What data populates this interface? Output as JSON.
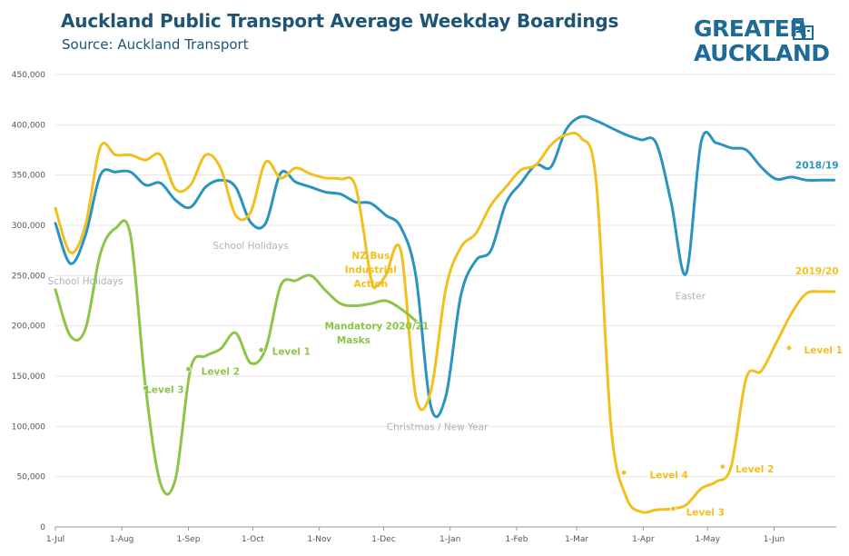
{
  "header": {
    "title": "Auckland Public Transport Average Weekday Boardings",
    "subtitle": "Source: Auckland Transport"
  },
  "logo": {
    "line1": "GREATER",
    "line2": "AUCKLAND",
    "icon": "buildings-icon",
    "color": "#1d6b97"
  },
  "chart_data": {
    "type": "line",
    "title": "Auckland Public Transport Average Weekday Boardings",
    "subtitle": "Source: Auckland Transport",
    "xlabel": "",
    "ylabel": "",
    "ylim": [
      0,
      450000
    ],
    "yticks": [
      0,
      50000,
      100000,
      150000,
      200000,
      250000,
      300000,
      350000,
      400000,
      450000
    ],
    "ytick_labels": [
      "0",
      "50,000",
      "100,000",
      "150,000",
      "200,000",
      "250,000",
      "300,000",
      "350,000",
      "400,000",
      "450,000"
    ],
    "xlim": [
      "1-Jul",
      "30-Jun"
    ],
    "xtick_labels": [
      "1-Jul",
      "1-Aug",
      "1-Sep",
      "1-Oct",
      "1-Nov",
      "1-Dec",
      "1-Jan",
      "1-Feb",
      "1-Mar",
      "1-Apr",
      "1-May",
      "1-Jun"
    ],
    "xtick_days": [
      0,
      31,
      62,
      92,
      123,
      153,
      184,
      215,
      243,
      274,
      304,
      335
    ],
    "grid": "horizontal",
    "series": [
      {
        "name": "2018/19",
        "color": "#2b93c0",
        "x": [
          0,
          7,
          14,
          21,
          28,
          35,
          42,
          49,
          56,
          63,
          70,
          77,
          84,
          91,
          98,
          105,
          112,
          119,
          126,
          133,
          140,
          147,
          154,
          161,
          168,
          175,
          182,
          189,
          196,
          203,
          210,
          217,
          224,
          231,
          238,
          245,
          252,
          259,
          266,
          273,
          280,
          287,
          294,
          301,
          308,
          315,
          322,
          329,
          336,
          343,
          350,
          357,
          363
        ],
        "y": [
          302000,
          262000,
          290000,
          350000,
          353000,
          353000,
          340000,
          342000,
          325000,
          318000,
          338000,
          345000,
          338000,
          303000,
          302000,
          352000,
          343000,
          338000,
          333000,
          331000,
          323000,
          322000,
          310000,
          298000,
          250000,
          120000,
          130000,
          230000,
          265000,
          275000,
          322000,
          342000,
          360000,
          358000,
          395000,
          408000,
          404000,
          397000,
          390000,
          385000,
          382000,
          323000,
          252000,
          383000,
          382000,
          377000,
          375000,
          358000,
          346000,
          348000,
          345000,
          345000,
          345000
        ]
      },
      {
        "name": "2019/20",
        "color": "#f2c01e",
        "x": [
          0,
          7,
          14,
          21,
          28,
          35,
          42,
          49,
          56,
          63,
          70,
          77,
          84,
          91,
          98,
          105,
          112,
          119,
          126,
          133,
          140,
          147,
          150,
          154,
          161,
          168,
          175,
          182,
          189,
          196,
          203,
          210,
          217,
          224,
          231,
          238,
          245,
          252,
          259,
          266,
          273,
          280,
          287,
          294,
          301,
          308,
          315,
          322,
          329,
          336,
          343,
          350,
          357,
          363
        ],
        "y": [
          317000,
          273000,
          300000,
          378000,
          370000,
          370000,
          365000,
          370000,
          336000,
          340000,
          370000,
          357000,
          310000,
          313000,
          363000,
          347000,
          357000,
          351000,
          347000,
          346000,
          338000,
          248000,
          240000,
          250000,
          275000,
          130000,
          135000,
          237000,
          278000,
          292000,
          320000,
          338000,
          355000,
          360000,
          380000,
          390000,
          387000,
          345000,
          100000,
          30000,
          15000,
          17000,
          18000,
          22000,
          38000,
          45000,
          60000,
          148000,
          155000,
          183000,
          212000,
          232000,
          234000,
          234000
        ]
      },
      {
        "name": "2020/21",
        "color": "#8dc549",
        "x": [
          0,
          7,
          14,
          21,
          28,
          35,
          42,
          49,
          56,
          63,
          70,
          77,
          84,
          91,
          98,
          105,
          112,
          119,
          126,
          133,
          140,
          147,
          154,
          161,
          168
        ],
        "y": [
          236000,
          190000,
          197000,
          272000,
          297000,
          290000,
          140000,
          43000,
          48000,
          157000,
          170000,
          177000,
          193000,
          163000,
          177000,
          240000,
          245000,
          250000,
          235000,
          222000,
          220000,
          222000,
          225000,
          217000,
          205000
        ]
      }
    ],
    "annotations": [
      {
        "text": "School Holidays",
        "color": "#a9b4bd",
        "x": 14,
        "y": 245000
      },
      {
        "text": "School Holidays",
        "color": "#a9b4bd",
        "x": 91,
        "y": 280000
      },
      {
        "text": "NZ Bus",
        "color": "#f2c01e",
        "x": 147,
        "y": 270000
      },
      {
        "text": "Industrial",
        "color": "#f2c01e",
        "x": 147,
        "y": 256000
      },
      {
        "text": "Action",
        "color": "#f2c01e",
        "x": 147,
        "y": 242000
      },
      {
        "text": "Mandatory",
        "color": "#8dc549",
        "x": 139,
        "y": 200000
      },
      {
        "text": "Masks",
        "color": "#8dc549",
        "x": 139,
        "y": 186000
      },
      {
        "text": "2020/21",
        "color": "#8dc549",
        "x": 164,
        "y": 200000
      },
      {
        "text": "Christmas / New Year",
        "color": "#a9b4bd",
        "x": 178,
        "y": 100000
      },
      {
        "text": "Easter",
        "color": "#a9b4bd",
        "x": 296,
        "y": 230000
      },
      {
        "text": "2018/19",
        "color": "#2b93c0",
        "x": 355,
        "y": 360000
      },
      {
        "text": "2019/20",
        "color": "#f2c01e",
        "x": 355,
        "y": 255000
      },
      {
        "text": "Level 3",
        "color": "#8dc549",
        "x": 42,
        "y": 137000,
        "marker": {
          "x": 42,
          "y": 138000
        }
      },
      {
        "text": "Level 2",
        "color": "#8dc549",
        "x": 68,
        "y": 155000,
        "marker": {
          "x": 62,
          "y": 157000
        }
      },
      {
        "text": "Level 1",
        "color": "#8dc549",
        "x": 101,
        "y": 175000,
        "marker": {
          "x": 96,
          "y": 176000
        }
      },
      {
        "text": "Level 4",
        "color": "#f2c01e",
        "x": 277,
        "y": 52000,
        "marker": {
          "x": 265,
          "y": 54000
        }
      },
      {
        "text": "Level 3",
        "color": "#f2c01e",
        "x": 294,
        "y": 15000,
        "marker": {
          "x": 288,
          "y": 18000
        }
      },
      {
        "text": "Level 2",
        "color": "#f2c01e",
        "x": 317,
        "y": 58000,
        "marker": {
          "x": 311,
          "y": 60000
        }
      },
      {
        "text": "Level 1",
        "color": "#f2c01e",
        "x": 349,
        "y": 176000,
        "marker": {
          "x": 342,
          "y": 178000
        }
      }
    ]
  }
}
